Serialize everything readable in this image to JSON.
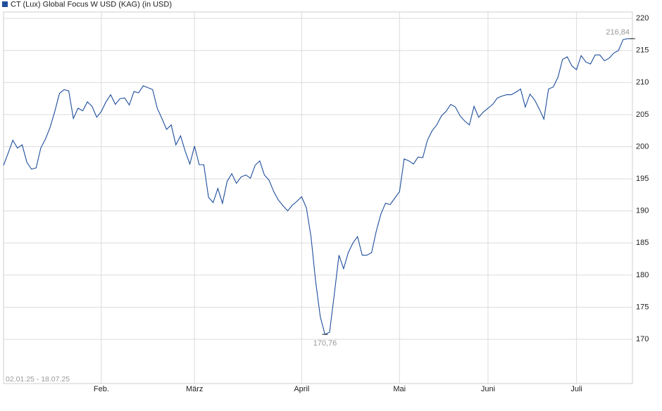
{
  "chart_data": {
    "type": "line",
    "title": "CT (Lux) Global Focus W USD (KAG) (in USD)",
    "date_range": "02.01.25 - 18.07.25",
    "categories": [
      null,
      null,
      null,
      null,
      null,
      null,
      null,
      null,
      null,
      null,
      null,
      null,
      null,
      null,
      null,
      null,
      null,
      null,
      null,
      null,
      null,
      "Feb.",
      null,
      null,
      null,
      null,
      null,
      null,
      null,
      null,
      null,
      null,
      null,
      null,
      null,
      null,
      null,
      null,
      null,
      null,
      null,
      "März",
      null,
      null,
      null,
      null,
      null,
      null,
      null,
      null,
      null,
      null,
      null,
      null,
      null,
      null,
      null,
      null,
      null,
      null,
      null,
      null,
      null,
      null,
      "April",
      null,
      null,
      null,
      null,
      null,
      null,
      null,
      null,
      null,
      null,
      null,
      null,
      null,
      null,
      null,
      null,
      null,
      null,
      null,
      null,
      "Mai",
      null,
      null,
      null,
      null,
      null,
      null,
      null,
      null,
      null,
      null,
      null,
      null,
      null,
      null,
      null,
      null,
      null,
      null,
      "Juni",
      null,
      null,
      null,
      null,
      null,
      null,
      null,
      null,
      null,
      null,
      null,
      null,
      null,
      null,
      null,
      null,
      null,
      null,
      "Juli",
      null,
      null,
      null,
      null,
      null,
      null,
      null,
      null,
      null,
      null,
      null,
      null
    ],
    "series": [
      {
        "name": "CT (Lux) Global Focus W USD (KAG) (in USD)",
        "color": "#1f4e9c",
        "values": [
          197.1,
          199.0,
          201.0,
          199.8,
          200.3,
          197.6,
          196.5,
          196.7,
          199.8,
          201.2,
          203.0,
          205.5,
          208.3,
          208.9,
          208.7,
          204.4,
          206.0,
          205.6,
          207.0,
          206.3,
          204.6,
          205.5,
          207.0,
          208.1,
          206.6,
          207.5,
          207.6,
          206.5,
          208.6,
          208.4,
          209.5,
          209.2,
          208.9,
          206.0,
          204.4,
          202.7,
          203.4,
          200.3,
          201.7,
          199.3,
          197.3,
          200.1,
          197.2,
          197.2,
          192.1,
          191.3,
          193.5,
          191.2,
          194.6,
          195.8,
          194.3,
          195.3,
          195.6,
          195.1,
          197.1,
          197.8,
          195.6,
          194.8,
          193.0,
          191.7,
          190.8,
          190.0,
          190.9,
          191.5,
          192.2,
          190.5,
          186.0,
          179.0,
          173.5,
          170.76,
          171.1,
          177.0,
          183.1,
          181.0,
          183.5,
          185.0,
          186.0,
          183.1,
          183.1,
          183.5,
          186.8,
          189.5,
          191.2,
          191.0,
          192.0,
          193.0,
          198.1,
          197.8,
          197.3,
          198.4,
          198.3,
          201.0,
          202.5,
          203.4,
          204.8,
          205.5,
          206.6,
          206.2,
          204.8,
          204.0,
          203.4,
          206.3,
          204.6,
          205.4,
          206.0,
          206.6,
          207.6,
          207.9,
          208.1,
          208.1,
          208.5,
          209.0,
          206.2,
          208.2,
          207.3,
          205.9,
          204.3,
          209.0,
          209.3,
          210.8,
          213.6,
          214.0,
          212.6,
          212.0,
          214.2,
          213.2,
          212.9,
          214.3,
          214.3,
          213.4,
          213.8,
          214.6,
          215.0,
          216.7,
          216.84,
          216.84
        ]
      }
    ],
    "annotations": [
      {
        "label": "216,84",
        "value": 216.84
      },
      {
        "label": "170,76",
        "value": 170.76
      }
    ],
    "ylim": [
      163.1,
      221
    ],
    "yticks": [
      170,
      175,
      180,
      185,
      190,
      195,
      200,
      205,
      210,
      215,
      220
    ],
    "grid": true
  }
}
